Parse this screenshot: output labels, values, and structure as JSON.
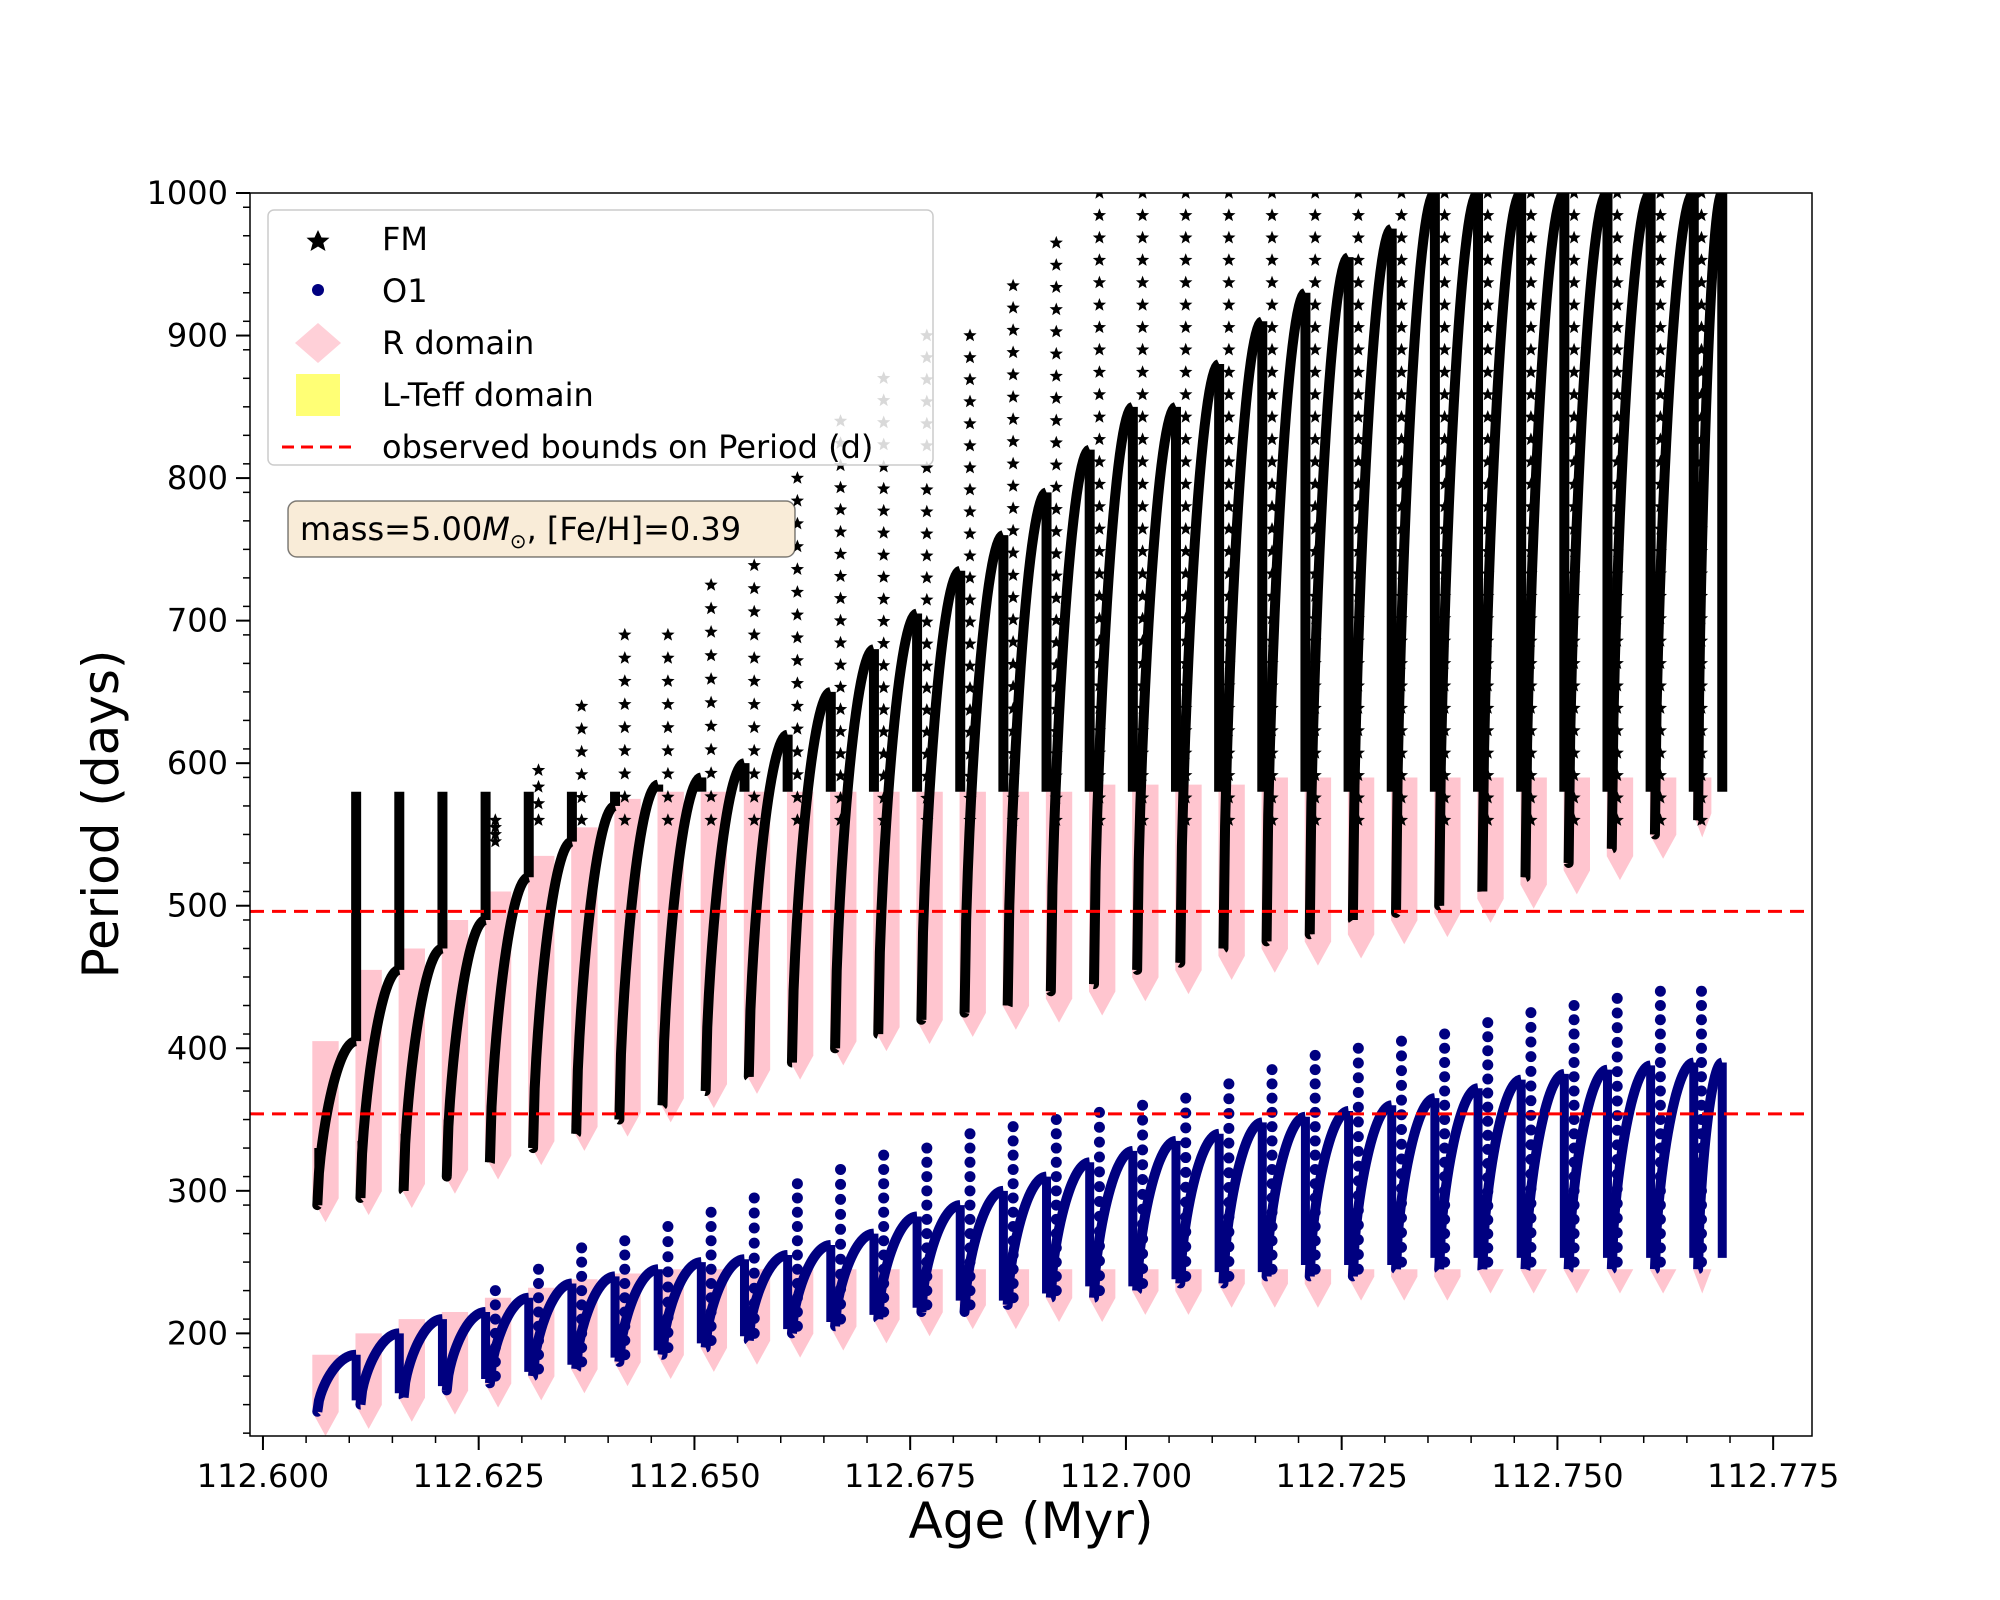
{
  "chart_data": {
    "type": "scatter",
    "title": "",
    "xlabel": "Age (Myr)",
    "ylabel": "Period (days)",
    "xlim": [
      112.5985,
      112.7795
    ],
    "ylim": [
      128,
      1000
    ],
    "x_ticks": [
      112.6,
      112.625,
      112.65,
      112.675,
      112.7,
      112.725,
      112.75,
      112.775
    ],
    "x_tick_labels": [
      "112.600",
      "112.625",
      "112.650",
      "112.675",
      "112.700",
      "112.725",
      "112.750",
      "112.775"
    ],
    "y_ticks": [
      200,
      300,
      400,
      500,
      600,
      700,
      800,
      900,
      1000
    ],
    "y_tick_labels": [
      "200",
      "300",
      "400",
      "500",
      "600",
      "700",
      "800",
      "900",
      "1000"
    ],
    "grid": false,
    "legend_position": "top-left",
    "legend": [
      {
        "label": "FM",
        "marker": "star",
        "color": "#000000"
      },
      {
        "label": "O1",
        "marker": "circle",
        "color": "#000080"
      },
      {
        "label": "R domain",
        "marker": "diamond",
        "color": "#ffc0cb"
      },
      {
        "label": "L-Teff domain",
        "marker": "square",
        "color": "#ffff66"
      },
      {
        "label": "observed bounds on Period (d)",
        "marker": "dashed-line",
        "color": "#ff0000"
      }
    ],
    "annotation": {
      "prefix": "mass=5.00",
      "mass_symbol": "M",
      "sun_symbol": "⊙",
      "suffix": ", [Fe/H]=0.39"
    },
    "hlines": [
      {
        "y": 496,
        "style": "dashed",
        "color": "#ff0000"
      },
      {
        "y": 354,
        "style": "dashed",
        "color": "#ff0000"
      }
    ],
    "fm_loops": {
      "description": "blue-loop sweeps; each loop's period rises from bottom to top then drops",
      "x_start": [
        112.6063,
        112.6113,
        112.6163,
        112.6213,
        112.6263,
        112.6313,
        112.6363,
        112.6413,
        112.6463,
        112.6513,
        112.6563,
        112.6613,
        112.6663,
        112.6713,
        112.6763,
        112.6813,
        112.6863,
        112.6913,
        112.6963,
        112.7013,
        112.7063,
        112.7113,
        112.7163,
        112.7213,
        112.7263,
        112.7313,
        112.7363,
        112.7413,
        112.7463,
        112.7513,
        112.7563,
        112.7613,
        112.7663
      ],
      "x_end": [
        112.6108,
        112.6158,
        112.6208,
        112.6258,
        112.6308,
        112.6358,
        112.6408,
        112.6458,
        112.6508,
        112.6558,
        112.6608,
        112.6658,
        112.6708,
        112.6758,
        112.6808,
        112.6858,
        112.6908,
        112.6958,
        112.7008,
        112.7058,
        112.7108,
        112.7158,
        112.7208,
        112.7258,
        112.7308,
        112.7358,
        112.7408,
        112.7458,
        112.7508,
        112.7558,
        112.7608,
        112.7658,
        112.7691
      ],
      "p_bottom": [
        290,
        295,
        300,
        310,
        320,
        330,
        340,
        350,
        360,
        370,
        380,
        390,
        400,
        410,
        420,
        425,
        430,
        440,
        445,
        455,
        460,
        470,
        475,
        480,
        490,
        495,
        500,
        510,
        520,
        530,
        540,
        550,
        560
      ],
      "p_top": [
        405,
        455,
        470,
        490,
        520,
        545,
        570,
        585,
        590,
        600,
        620,
        650,
        680,
        705,
        735,
        760,
        790,
        820,
        850,
        850,
        880,
        910,
        930,
        955,
        975,
        1000,
        1000,
        1000,
        1000,
        1000,
        1000,
        1000,
        1000
      ],
      "spike_top": [
        0,
        0,
        0,
        0,
        545,
        595,
        640,
        690,
        690,
        725,
        755,
        800,
        840,
        870,
        900,
        900,
        935,
        965,
        1000,
        1000,
        1000,
        1000,
        1000,
        1000,
        1000,
        1000,
        1000,
        1000,
        1000,
        1000,
        1000,
        1000,
        1000
      ]
    },
    "o1_loops": {
      "p_bottom": [
        145,
        150,
        155,
        160,
        165,
        170,
        175,
        180,
        185,
        190,
        195,
        200,
        205,
        210,
        215,
        215,
        220,
        225,
        225,
        230,
        235,
        235,
        240,
        240,
        240,
        245,
        245,
        245,
        245,
        245,
        245,
        245,
        245
      ],
      "p_top": [
        185,
        200,
        210,
        215,
        225,
        235,
        240,
        245,
        250,
        252,
        255,
        262,
        270,
        282,
        290,
        300,
        310,
        320,
        328,
        335,
        340,
        348,
        352,
        356,
        360,
        365,
        372,
        378,
        382,
        385,
        388,
        390,
        390
      ],
      "spike_top": [
        0,
        0,
        0,
        0,
        230,
        245,
        260,
        265,
        275,
        285,
        295,
        305,
        315,
        325,
        330,
        340,
        345,
        350,
        355,
        360,
        365,
        375,
        385,
        395,
        400,
        405,
        410,
        418,
        425,
        430,
        435,
        440,
        440
      ]
    },
    "r_domain": {
      "fm_top": [
        405,
        455,
        470,
        490,
        510,
        535,
        555,
        575,
        580,
        580,
        580,
        580,
        580,
        580,
        580,
        580,
        580,
        580,
        585,
        585,
        585,
        585,
        590,
        590,
        590,
        590,
        590,
        590,
        590,
        590,
        590,
        590,
        590
      ],
      "fm_bottom": [
        285,
        290,
        295,
        305,
        315,
        325,
        335,
        345,
        355,
        365,
        375,
        385,
        395,
        405,
        410,
        415,
        420,
        425,
        430,
        440,
        445,
        455,
        460,
        465,
        470,
        480,
        485,
        495,
        505,
        515,
        525,
        540,
        555
      ],
      "o1_top": [
        185,
        200,
        210,
        215,
        225,
        232,
        238,
        242,
        245,
        245,
        245,
        245,
        245,
        245,
        245,
        245,
        245,
        245,
        245,
        245,
        245,
        245,
        245,
        245,
        245,
        245,
        245,
        245,
        245,
        245,
        245,
        245,
        245
      ],
      "o1_bottom": [
        135,
        140,
        145,
        150,
        155,
        160,
        165,
        170,
        175,
        180,
        185,
        190,
        195,
        200,
        205,
        210,
        210,
        215,
        215,
        220,
        220,
        225,
        225,
        225,
        230,
        230,
        230,
        235,
        235,
        235,
        235,
        235,
        235
      ]
    }
  }
}
